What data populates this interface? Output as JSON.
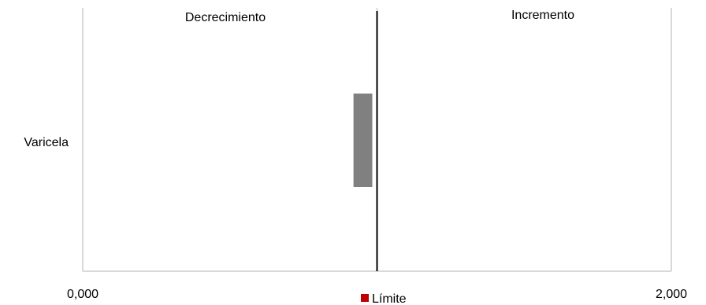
{
  "chart_data": {
    "type": "bar",
    "orientation": "horizontal",
    "categories": [
      "Varicela"
    ],
    "series": [
      {
        "name": "",
        "values": [
          0.92
        ]
      }
    ],
    "bar_start": 0.92,
    "bar_end": 1.0,
    "reference_line": 1.0,
    "xlim": [
      0,
      2
    ],
    "xtick_labels": [
      "0,000",
      "2,000"
    ],
    "region_labels": {
      "left": "Decrecimiento",
      "right": "Incremento"
    },
    "legend": {
      "label": "Límite",
      "color": "#c00000",
      "position": "bottom"
    },
    "grid": "vertical",
    "bar_color": "#808080",
    "gridline_color": "#d9d9d9"
  }
}
